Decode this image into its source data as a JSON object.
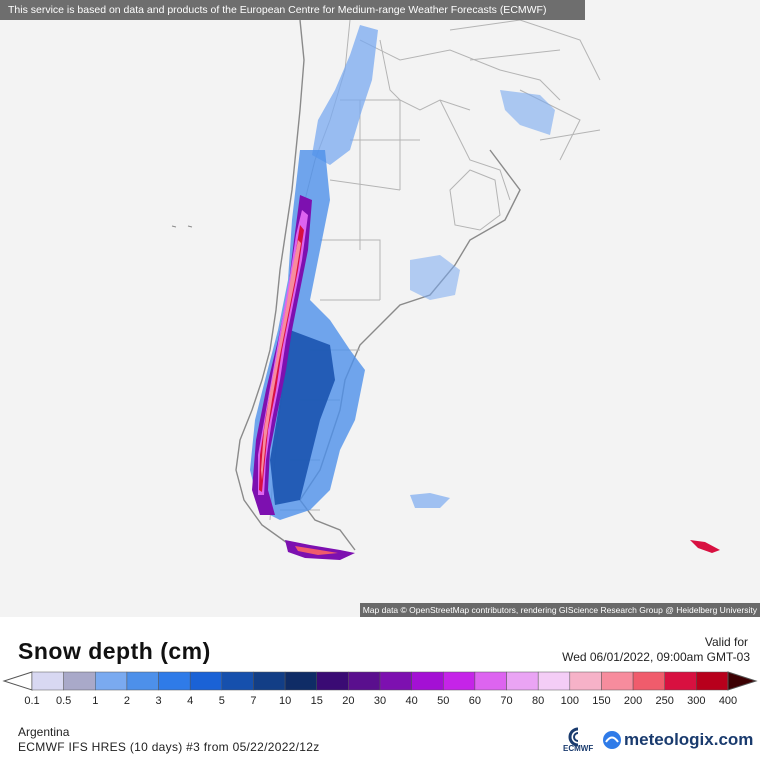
{
  "notice": "This service is based on data and products of the European Centre for Medium-range Weather Forecasts (ECMWF)",
  "attribution": "Map data © OpenStreetMap contributors, rendering GIScience Research Group @ Heidelberg University",
  "title": "Snow depth (cm)",
  "valid_label": "Valid for",
  "valid_time": "Wed 06/01/2022, 09:00am GMT-03",
  "region": "Argentina",
  "model_run": "ECMWF IFS HRES (10 days) #3 from  05/22/2022/12z",
  "brand": "meteologix.com",
  "ecmwf_label": "ECMWF",
  "legend": {
    "ticks": [
      "0.1",
      "0.5",
      "1",
      "2",
      "3",
      "4",
      "5",
      "7",
      "10",
      "15",
      "20",
      "30",
      "40",
      "50",
      "60",
      "70",
      "80",
      "100",
      "150",
      "200",
      "250",
      "300",
      "400"
    ],
    "colors": [
      "#d8d8f2",
      "#a9a9c9",
      "#7aaaf0",
      "#4d90ea",
      "#2f7be8",
      "#1a62d6",
      "#1650ad",
      "#123e86",
      "#0f2c66",
      "#3a0b74",
      "#5a0f8e",
      "#7d10b0",
      "#a410d4",
      "#c524e8",
      "#dd64f0",
      "#eaa4f4",
      "#f4cdf6",
      "#f6b2c8",
      "#f78c9d",
      "#f05c6c",
      "#d81040",
      "#b8001c",
      "#940010",
      "#6e0008",
      "#3c0003"
    ]
  },
  "colors": {
    "land": "#f3f3f3",
    "sea": "#f3f3f3",
    "border": "#b4b4b4",
    "coast": "#8a8a8a"
  }
}
